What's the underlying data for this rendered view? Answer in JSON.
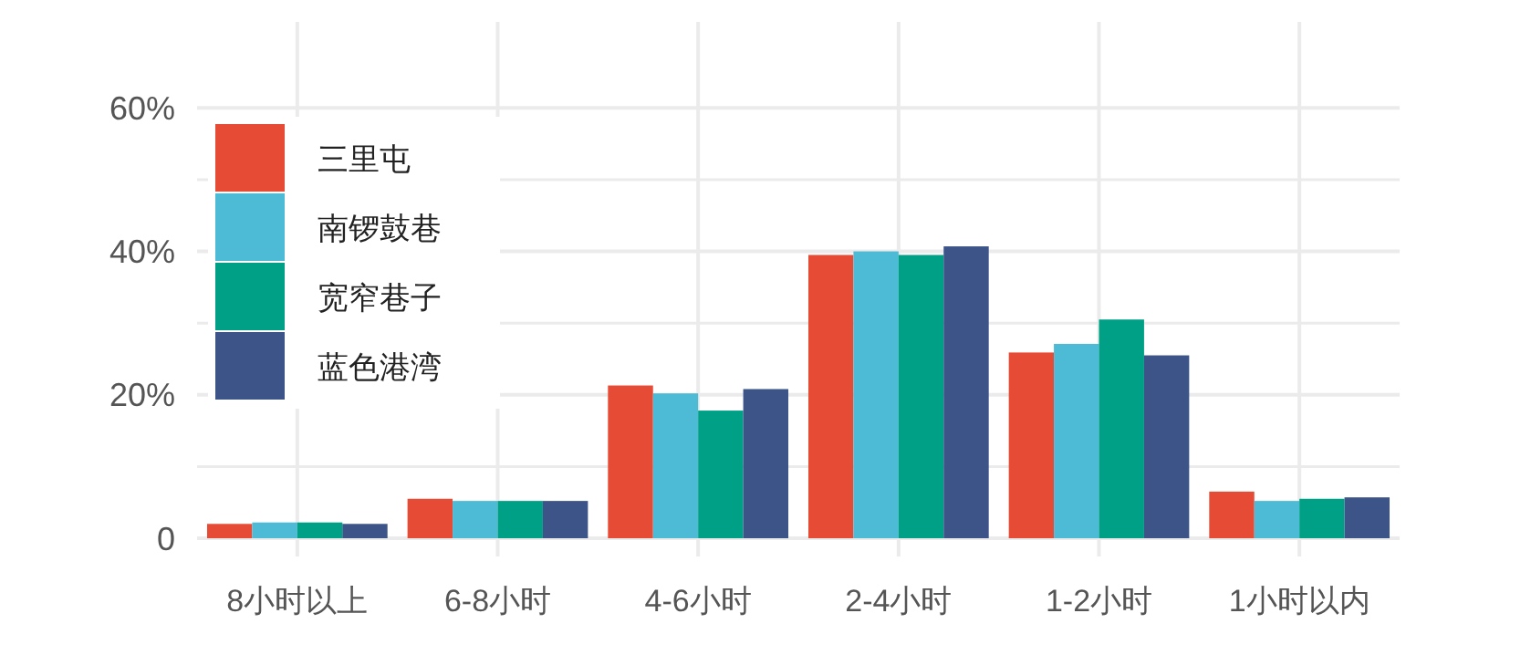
{
  "chart_data": {
    "type": "bar",
    "categories": [
      "8小时以上",
      "6-8小时",
      "4-6小时",
      "2-4小时",
      "1-2小时",
      "1小时以内"
    ],
    "series": [
      {
        "name": "三里屯",
        "color": "#e64b35",
        "values": [
          2,
          5.5,
          21.3,
          39.5,
          25.9,
          6.5
        ]
      },
      {
        "name": "南锣鼓巷",
        "color": "#4dbbd5",
        "values": [
          2.2,
          5.2,
          20.2,
          40,
          27.1,
          5.2
        ]
      },
      {
        "name": "宽窄巷子",
        "color": "#00a087",
        "values": [
          2.2,
          5.2,
          17.8,
          39.5,
          30.5,
          5.5
        ]
      },
      {
        "name": "蓝色港湾",
        "color": "#3c5488",
        "values": [
          2,
          5.2,
          20.8,
          40.7,
          25.5,
          5.7
        ]
      }
    ],
    "ylim": [
      0,
      72
    ],
    "yticks": [
      0,
      {
        "value": 10,
        "label": null
      },
      {
        "value": 20,
        "label": "20%"
      },
      {
        "value": 30,
        "label": null
      },
      {
        "value": 40,
        "label": "40%"
      },
      {
        "value": 50,
        "label": null
      },
      {
        "value": 60,
        "label": "60%"
      }
    ],
    "grid": true,
    "legend": "top left"
  }
}
